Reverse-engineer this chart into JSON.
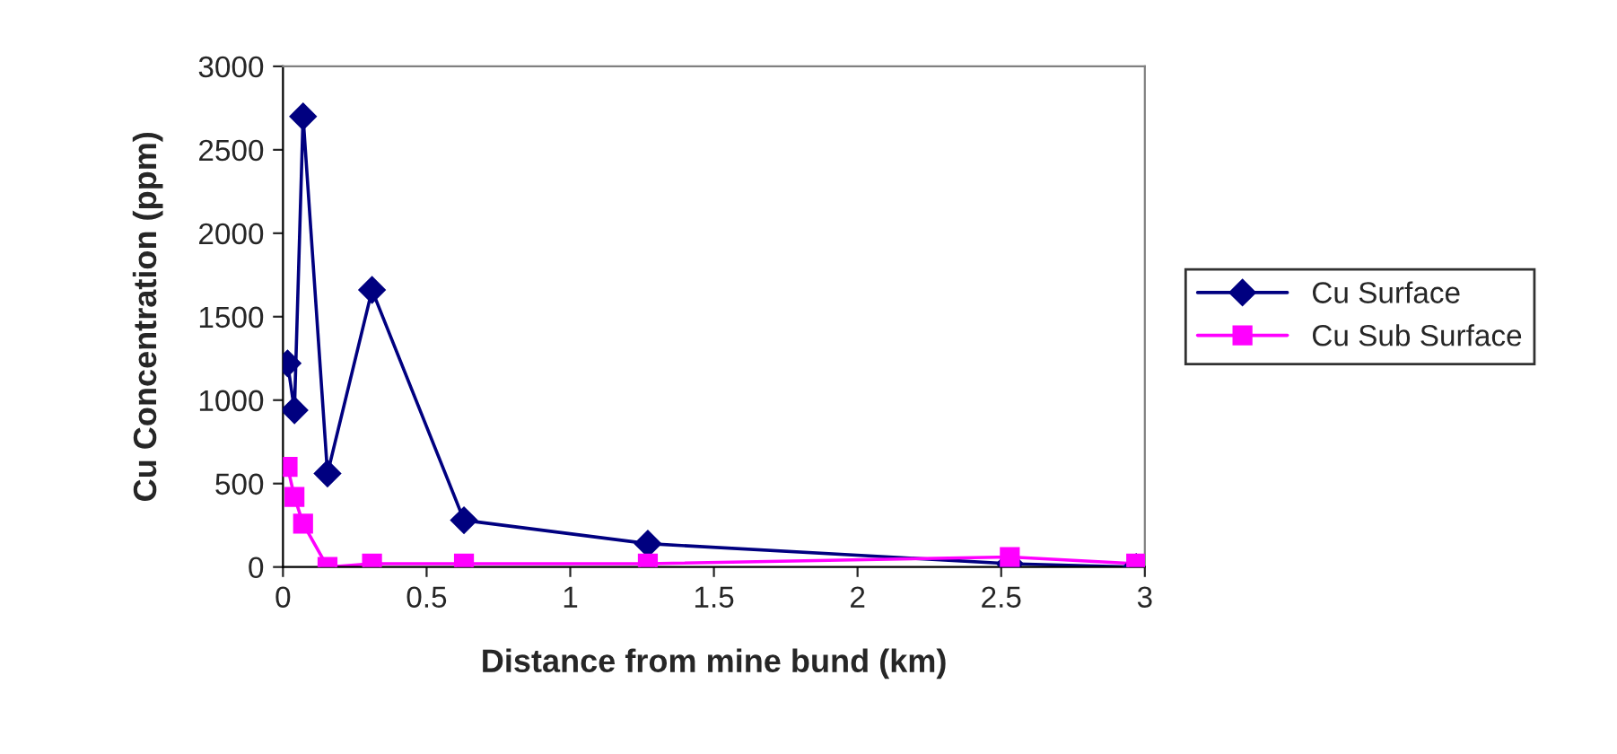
{
  "chart_data": {
    "type": "line",
    "xlabel": "Distance from mine bund (km)",
    "ylabel": "Cu Concentration (ppm)",
    "x": [
      0.016,
      0.04,
      0.07,
      0.155,
      0.31,
      0.63,
      1.27,
      2.53,
      2.97
    ],
    "series": [
      {
        "name": "Cu Surface",
        "color": "#000080",
        "marker": "diamond",
        "values": [
          1220,
          940,
          2700,
          560,
          1660,
          280,
          140,
          20,
          0
        ]
      },
      {
        "name": "Cu Sub Surface",
        "color": "#ff00ff",
        "marker": "square",
        "values": [
          600,
          420,
          260,
          0,
          20,
          20,
          20,
          60,
          20
        ]
      }
    ],
    "xlim": [
      0,
      3
    ],
    "xticks": [
      0,
      0.5,
      1,
      1.5,
      2,
      2.5,
      3
    ],
    "ylim": [
      0,
      3000
    ],
    "yticks": [
      0,
      500,
      1000,
      1500,
      2000,
      2500,
      3000
    ],
    "grid": false,
    "legend": "right",
    "line_style": "solid"
  }
}
